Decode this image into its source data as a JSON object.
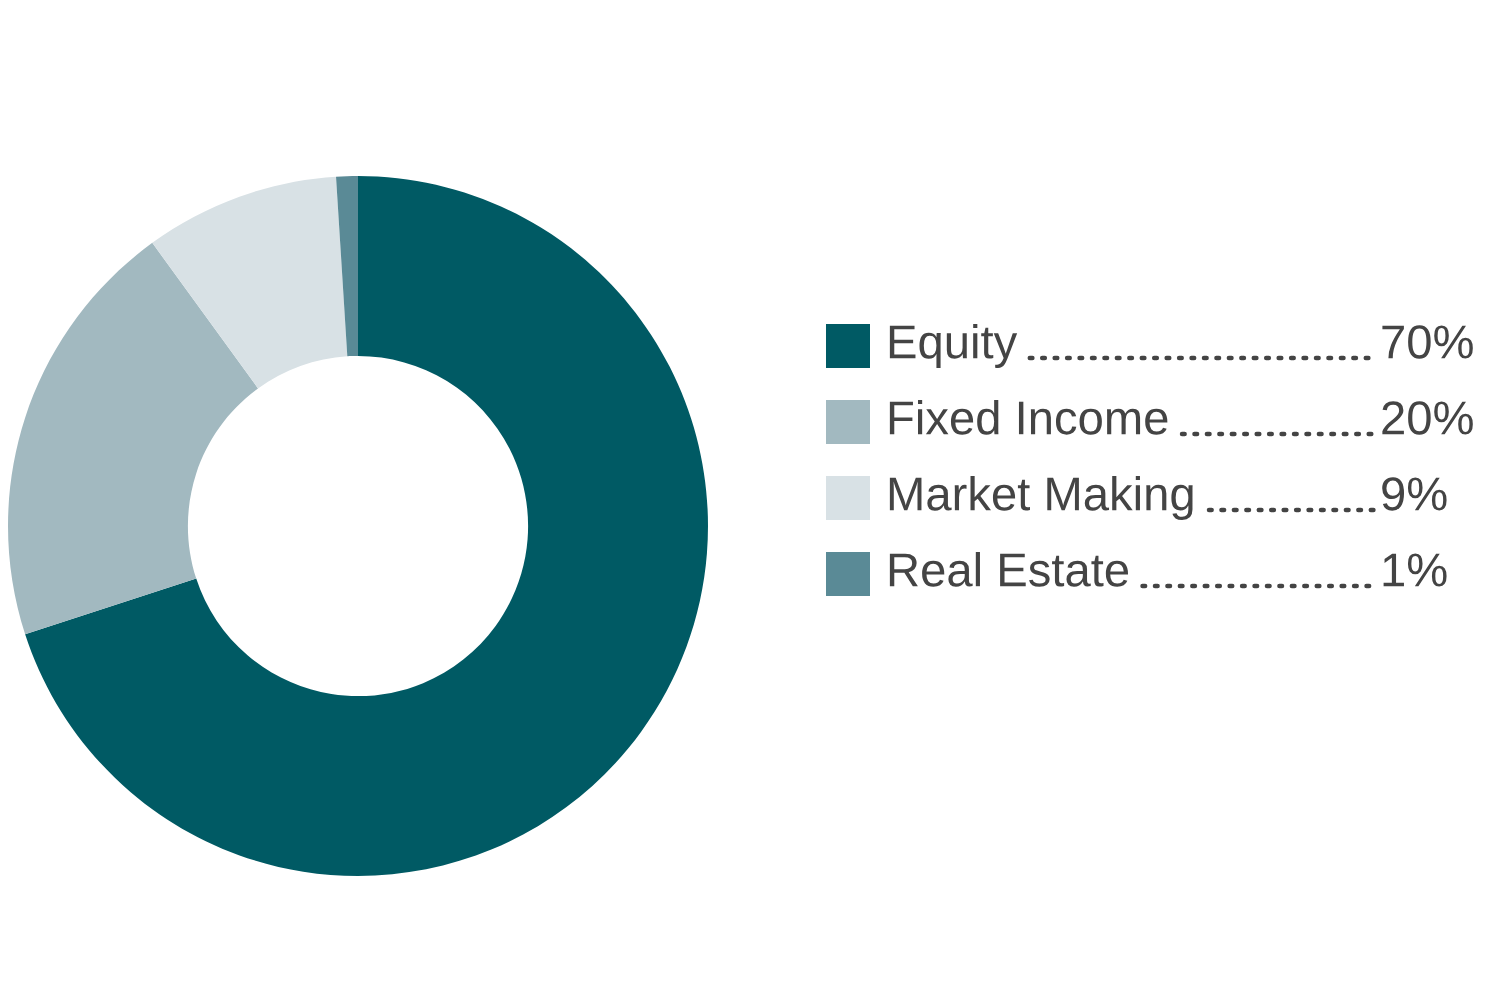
{
  "chart_data": {
    "type": "donut",
    "categories": [
      "Equity",
      "Fixed Income",
      "Market Making",
      "Real Estate"
    ],
    "values": [
      70,
      20,
      9,
      1
    ],
    "colors": [
      "#005a64",
      "#a2b9c0",
      "#d8e1e5",
      "#5a8a96"
    ],
    "value_labels": [
      "70%",
      "20%",
      "9%",
      "1%"
    ],
    "legend": "right"
  }
}
